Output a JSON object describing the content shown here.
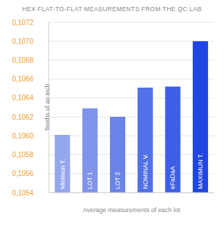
{
  "chart_data": {
    "type": "bar",
    "title": "HEX FLAT-TO-FLAT MEASUREMENTS FROM THE QC LAB",
    "x_label": "Average measurements of each lot",
    "y_label": "Tenths of an inch",
    "categories": [
      "Minimun T.",
      "LOT 1",
      "LOT 2",
      "NOMINAL V.",
      "eFaDaA",
      "MAXIMUN T."
    ],
    "values": [
      0.10601,
      0.10629,
      0.1062,
      0.10651,
      0.10652,
      0.107
    ],
    "colors": [
      "#94a6ec",
      "#7f94ea",
      "#6b83e9",
      "#5270e7",
      "#3d5fe6",
      "#1f46e3"
    ],
    "ylim": [
      0.1054,
      0.1072
    ],
    "yticks": [
      {
        "value": 0.1054,
        "label": "0,1054"
      },
      {
        "value": 0.1056,
        "label": "0,1056"
      },
      {
        "value": 0.1058,
        "label": "0,1058"
      },
      {
        "value": 0.106,
        "label": "0,1060"
      },
      {
        "value": 0.1062,
        "label": "0,1062"
      },
      {
        "value": 0.1064,
        "label": "0,1064"
      },
      {
        "value": 0.1066,
        "label": "0,1066"
      },
      {
        "value": 0.1068,
        "label": "0,1068"
      },
      {
        "value": 0.107,
        "label": "0,1070"
      },
      {
        "value": 0.1072,
        "label": "0,1072"
      }
    ],
    "grid": true
  }
}
